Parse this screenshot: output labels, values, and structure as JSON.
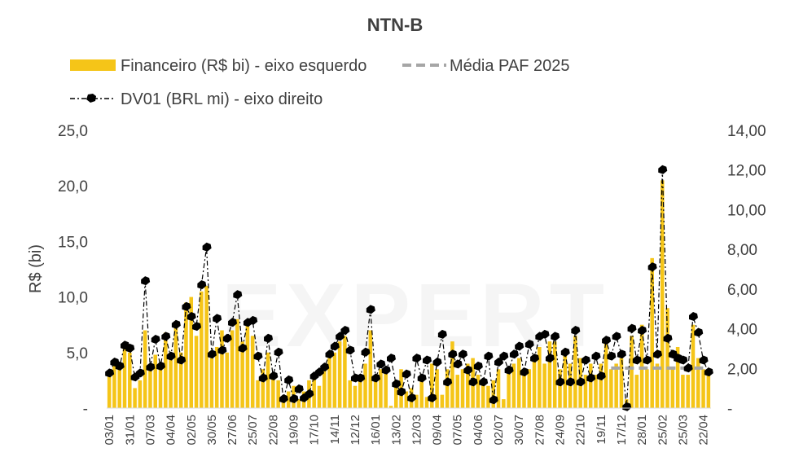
{
  "chart_data": {
    "type": "bar",
    "title": "NTN-B",
    "ylabel": "R$ (bi)",
    "ylabel_right": "",
    "watermark": "EXPERT",
    "ylim": [
      0,
      25
    ],
    "ylim_right": [
      0,
      14
    ],
    "yticks_left": [
      "-",
      "5,0",
      "10,0",
      "15,0",
      "20,0",
      "25,0"
    ],
    "yticks_right": [
      "-",
      "2,00",
      "4,00",
      "6,00",
      "8,00",
      "10,00",
      "12,00",
      "14,00"
    ],
    "xtick_labels": [
      "03/01",
      "31/01",
      "07/03",
      "04/04",
      "02/05",
      "30/05",
      "27/06",
      "25/07",
      "22/08",
      "19/09",
      "17/10",
      "14/11",
      "12/12",
      "16/01",
      "13/02",
      "12/03",
      "09/04",
      "07/05",
      "04/06",
      "02/07",
      "30/07",
      "27/08",
      "24/09",
      "22/10",
      "19/11",
      "17/12",
      "28/01",
      "25/02",
      "25/03",
      "22/04"
    ],
    "legend": {
      "bar_label": "Financeiro (R$ bi) - eixo esquerdo",
      "mean_label": "Média PAF 2025",
      "dv01_label": "DV01 (BRL mi) - eixo direito"
    },
    "colors": {
      "bar": "#F5C518",
      "mean": "#A6A6A6",
      "dv01": "#000000"
    },
    "mean_paf_2025": {
      "value": 3.6,
      "start_index": 98
    },
    "series": [
      {
        "name": "Financeiro (R$ bi) - eixo esquerdo",
        "axis": "left",
        "values": [
          3.0,
          4.0,
          3.5,
          5.5,
          5.0,
          1.8,
          2.5,
          7.0,
          3.6,
          4.8,
          3.5,
          6.8,
          4.4,
          7.2,
          5.0,
          9.5,
          10.0,
          6.5,
          10.5,
          11.0,
          4.5,
          5.5,
          7.0,
          5.0,
          7.0,
          8.0,
          6.0,
          7.5,
          6.5,
          2.5,
          3.5,
          5.0,
          3.0,
          2.5,
          1.0,
          1.5,
          2.0,
          0.8,
          1.5,
          2.5,
          3.0,
          2.0,
          3.5,
          4.5,
          5.0,
          6.0,
          6.5,
          2.5,
          2.0,
          2.5,
          4.0,
          7.0,
          3.0,
          3.5,
          3.2,
          0.2,
          2.5,
          3.5,
          1.5,
          1.8,
          1.2,
          3.0,
          1.0,
          4.0,
          3.5,
          1.2,
          3.5,
          6.0,
          3.0,
          3.5,
          4.0,
          4.5,
          3.0,
          2.5,
          2.0,
          2.5,
          3.5,
          0.8,
          3.5,
          4.0,
          4.5,
          3.0,
          3.5,
          4.8,
          5.5,
          4.0,
          6.0,
          6.0,
          3.5,
          5.0,
          4.0,
          6.5,
          4.5,
          3.0,
          4.0,
          3.0,
          4.0,
          6.0,
          3.5,
          4.0,
          4.5,
          0.8,
          6.5,
          3.0,
          7.5,
          3.5,
          13.5,
          4.0,
          20.5,
          9.0,
          3.5,
          5.5,
          3.0,
          3.0,
          7.5,
          4.5,
          3.5,
          3.0
        ]
      },
      {
        "name": "DV01 (BRL mi) - eixo direito",
        "axis": "right",
        "values": [
          1.75,
          2.3,
          2.1,
          3.15,
          3.0,
          1.55,
          1.75,
          6.4,
          2.05,
          3.45,
          2.1,
          3.6,
          2.6,
          4.2,
          2.4,
          5.1,
          4.6,
          4.1,
          6.2,
          8.1,
          2.7,
          4.5,
          2.9,
          3.5,
          4.3,
          5.7,
          3.0,
          4.3,
          4.4,
          2.6,
          1.5,
          3.5,
          1.6,
          2.8,
          0.45,
          1.4,
          0.45,
          0.95,
          0.5,
          0.7,
          1.6,
          1.8,
          2.05,
          2.7,
          3.1,
          3.6,
          3.9,
          2.9,
          1.5,
          1.5,
          2.8,
          4.95,
          1.5,
          2.2,
          1.9,
          2.5,
          1.2,
          0.8,
          1.7,
          0.5,
          2.5,
          1.5,
          2.4,
          0.5,
          2.3,
          3.7,
          1.3,
          2.7,
          2.2,
          2.7,
          1.9,
          1.3,
          2.1,
          1.3,
          2.6,
          0.4,
          2.3,
          2.6,
          1.9,
          2.7,
          3.1,
          1.8,
          3.2,
          2.5,
          3.6,
          3.7,
          2.5,
          3.6,
          1.3,
          2.8,
          1.3,
          3.9,
          1.3,
          2.4,
          1.5,
          2.6,
          1.6,
          3.4,
          2.6,
          3.6,
          2.7,
          0.05,
          4.0,
          2.4,
          3.9,
          2.4,
          7.1,
          2.7,
          12.0,
          3.5,
          2.7,
          2.5,
          2.4,
          2.0,
          4.6,
          3.8,
          2.4,
          1.8
        ]
      }
    ]
  }
}
